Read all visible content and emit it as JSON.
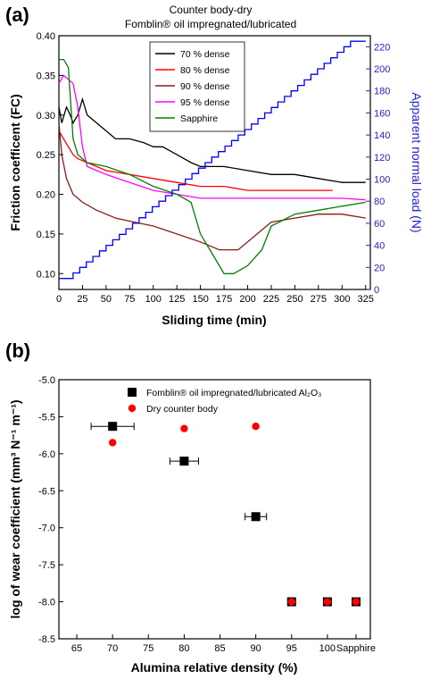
{
  "chart_data": [
    {
      "panel": "(a)",
      "type": "line",
      "title_line1": "Counter body-dry",
      "title_line2": "Fomblin® oil impregnated/lubricated",
      "xlabel": "Sliding time (min)",
      "ylabel": "Friction coefficent (FC)",
      "y2label": "Apparent normal load (N)",
      "xlim": [
        0,
        330
      ],
      "ylim": [
        0.08,
        0.4
      ],
      "y2lim": [
        0,
        230
      ],
      "xticks": [
        "0",
        "25",
        "50",
        "75",
        "100",
        "125",
        "150",
        "175",
        "200",
        "225",
        "250",
        "275",
        "300",
        "325"
      ],
      "yticks": [
        "0.10",
        "0.15",
        "0.20",
        "0.25",
        "0.30",
        "0.35",
        "0.40"
      ],
      "y2ticks": [
        "0",
        "20",
        "40",
        "60",
        "80",
        "100",
        "120",
        "140",
        "160",
        "180",
        "200",
        "220"
      ],
      "grid": false,
      "legend_position": "top-center",
      "series": [
        {
          "name": "70 % dense",
          "color": "#000000",
          "x": [
            0,
            3,
            8,
            12,
            15,
            20,
            25,
            30,
            40,
            50,
            60,
            75,
            90,
            100,
            110,
            125,
            140,
            150,
            175,
            200,
            225,
            250,
            275,
            300,
            325
          ],
          "y": [
            0.31,
            0.29,
            0.31,
            0.3,
            0.29,
            0.3,
            0.32,
            0.3,
            0.29,
            0.28,
            0.27,
            0.27,
            0.265,
            0.26,
            0.26,
            0.25,
            0.24,
            0.235,
            0.235,
            0.23,
            0.225,
            0.225,
            0.22,
            0.215,
            0.215
          ]
        },
        {
          "name": "80 % dense",
          "color": "#ff0000",
          "x": [
            0,
            5,
            10,
            15,
            20,
            30,
            50,
            75,
            100,
            125,
            150,
            175,
            200,
            225,
            250,
            275,
            290
          ],
          "y": [
            0.28,
            0.27,
            0.26,
            0.25,
            0.245,
            0.24,
            0.23,
            0.225,
            0.22,
            0.215,
            0.21,
            0.21,
            0.205,
            0.205,
            0.205,
            0.205,
            0.205
          ]
        },
        {
          "name": "90 % dense",
          "color": "#8b1a1a",
          "x": [
            0,
            3,
            8,
            15,
            25,
            40,
            60,
            80,
            100,
            125,
            150,
            170,
            180,
            190,
            200,
            210,
            225,
            250,
            275,
            300,
            325
          ],
          "y": [
            0.29,
            0.25,
            0.22,
            0.2,
            0.19,
            0.18,
            0.17,
            0.165,
            0.16,
            0.15,
            0.14,
            0.13,
            0.13,
            0.13,
            0.14,
            0.15,
            0.165,
            0.17,
            0.175,
            0.175,
            0.17
          ]
        },
        {
          "name": "95 % dense",
          "color": "#ff00ff",
          "x": [
            0,
            5,
            15,
            20,
            25,
            30,
            40,
            50,
            75,
            100,
            125,
            150,
            175,
            200,
            225,
            250,
            275,
            300,
            325
          ],
          "y": [
            0.34,
            0.35,
            0.34,
            0.31,
            0.26,
            0.235,
            0.23,
            0.225,
            0.215,
            0.205,
            0.2,
            0.195,
            0.195,
            0.195,
            0.195,
            0.195,
            0.195,
            0.195,
            0.193
          ]
        },
        {
          "name": "Sapphire",
          "color": "#008000",
          "x": [
            0,
            5,
            10,
            15,
            20,
            25,
            30,
            50,
            75,
            100,
            125,
            140,
            150,
            165,
            175,
            185,
            200,
            215,
            225,
            250,
            275,
            300,
            325
          ],
          "y": [
            0.37,
            0.37,
            0.36,
            0.27,
            0.25,
            0.245,
            0.24,
            0.235,
            0.225,
            0.21,
            0.2,
            0.19,
            0.15,
            0.12,
            0.1,
            0.1,
            0.11,
            0.13,
            0.16,
            0.175,
            0.18,
            0.185,
            0.19
          ]
        },
        {
          "name": "Apparent normal load",
          "color": "#0000ff",
          "axis": "right",
          "step": true,
          "x": [
            0,
            15,
            22,
            29,
            36,
            43,
            50,
            57,
            64,
            71,
            78,
            85,
            92,
            99,
            106,
            113,
            120,
            127,
            134,
            141,
            148,
            155,
            162,
            169,
            176,
            183,
            190,
            197,
            204,
            211,
            218,
            225,
            232,
            239,
            246,
            253,
            260,
            267,
            274,
            281,
            288,
            295,
            302,
            309,
            316,
            325
          ],
          "y": [
            10,
            15,
            20,
            25,
            30,
            35,
            40,
            45,
            50,
            55,
            60,
            65,
            70,
            75,
            80,
            85,
            90,
            95,
            100,
            105,
            110,
            115,
            120,
            125,
            130,
            135,
            140,
            145,
            150,
            155,
            160,
            165,
            170,
            175,
            180,
            185,
            190,
            195,
            200,
            205,
            210,
            215,
            220,
            225,
            225,
            225
          ]
        }
      ]
    },
    {
      "panel": "(b)",
      "type": "scatter",
      "xlabel": "Alumina relative density (%)",
      "ylabel": "log of wear coefficient (mm³ N⁻¹ m⁻¹)",
      "xlim": [
        62.5,
        106
      ],
      "ylim": [
        -8.5,
        -5.0
      ],
      "xticks": [
        "65",
        "70",
        "75",
        "80",
        "85",
        "90",
        "95",
        "100",
        "Sapphire"
      ],
      "yticks": [
        "-5.0",
        "-5.5",
        "-6.0",
        "-6.5",
        "-7.0",
        "-7.5",
        "-8.0",
        "-8.5"
      ],
      "grid": false,
      "legend_position": "top-right",
      "series": [
        {
          "name": "Fomblin® oil impregnated/lubricated Al₂O₃",
          "marker": "square",
          "color": "#000000",
          "x": [
            70,
            80,
            90,
            95,
            100,
            104
          ],
          "y": [
            -5.63,
            -6.1,
            -6.85,
            -8.0,
            -8.0,
            -8.0
          ],
          "xerr": [
            3,
            2,
            1.5,
            0.5,
            0.3,
            0.3
          ]
        },
        {
          "name": "Dry counter body",
          "marker": "circle",
          "color": "#ff0000",
          "x": [
            70,
            80,
            90,
            95,
            100,
            104
          ],
          "y": [
            -5.85,
            -5.66,
            -5.63,
            -8.0,
            -8.0,
            -8.0
          ]
        }
      ]
    }
  ]
}
